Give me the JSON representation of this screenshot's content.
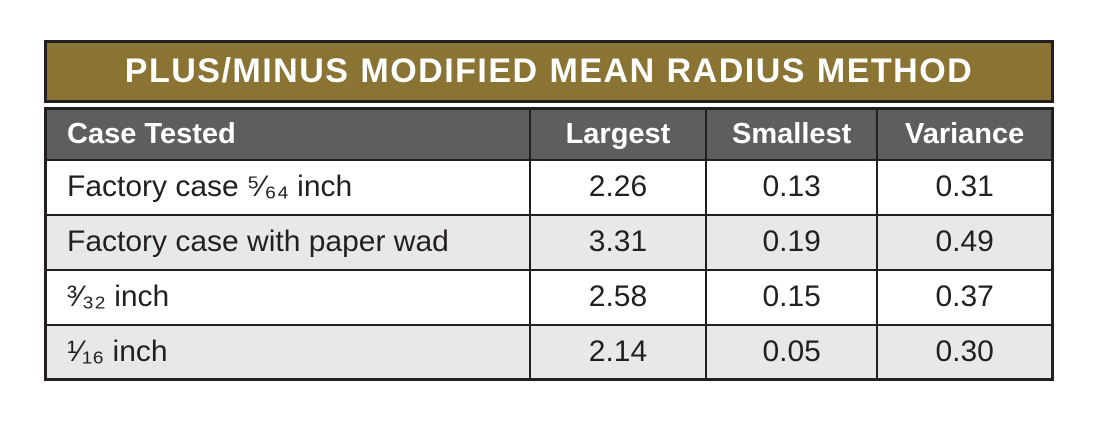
{
  "table": {
    "title": "PLUS/MINUS MODIFIED MEAN RADIUS METHOD",
    "columns": [
      "Case Tested",
      "Largest",
      "Smallest",
      "Variance"
    ],
    "rows": [
      {
        "case": "Factory case ⁵⁄₆₄ inch",
        "largest": "2.26",
        "smallest": "0.13",
        "variance": "0.31"
      },
      {
        "case": "Factory case with paper wad",
        "largest": "3.31",
        "smallest": "0.19",
        "variance": "0.49"
      },
      {
        "case": "³⁄₃₂ inch",
        "largest": "2.58",
        "smallest": "0.15",
        "variance": "0.37"
      },
      {
        "case": "¹⁄₁₆ inch",
        "largest": "2.14",
        "smallest": "0.05",
        "variance": "0.30"
      }
    ]
  },
  "colors": {
    "title_background": "#8a7434",
    "header_background": "#5e5e60",
    "row_alternate": "#e8e8e9",
    "border": "#231f20",
    "text_dark": "#231f20",
    "text_light": "#ffffff"
  },
  "chart_data": {
    "type": "table",
    "title": "PLUS/MINUS MODIFIED MEAN RADIUS METHOD",
    "columns": [
      "Case Tested",
      "Largest",
      "Smallest",
      "Variance"
    ],
    "rows": [
      [
        "Factory case 5/64 inch",
        2.26,
        0.13,
        0.31
      ],
      [
        "Factory case with paper wad",
        3.31,
        0.19,
        0.49
      ],
      [
        "3/32 inch",
        2.58,
        0.15,
        0.37
      ],
      [
        "1/16 inch",
        2.14,
        0.05,
        0.3
      ]
    ]
  }
}
